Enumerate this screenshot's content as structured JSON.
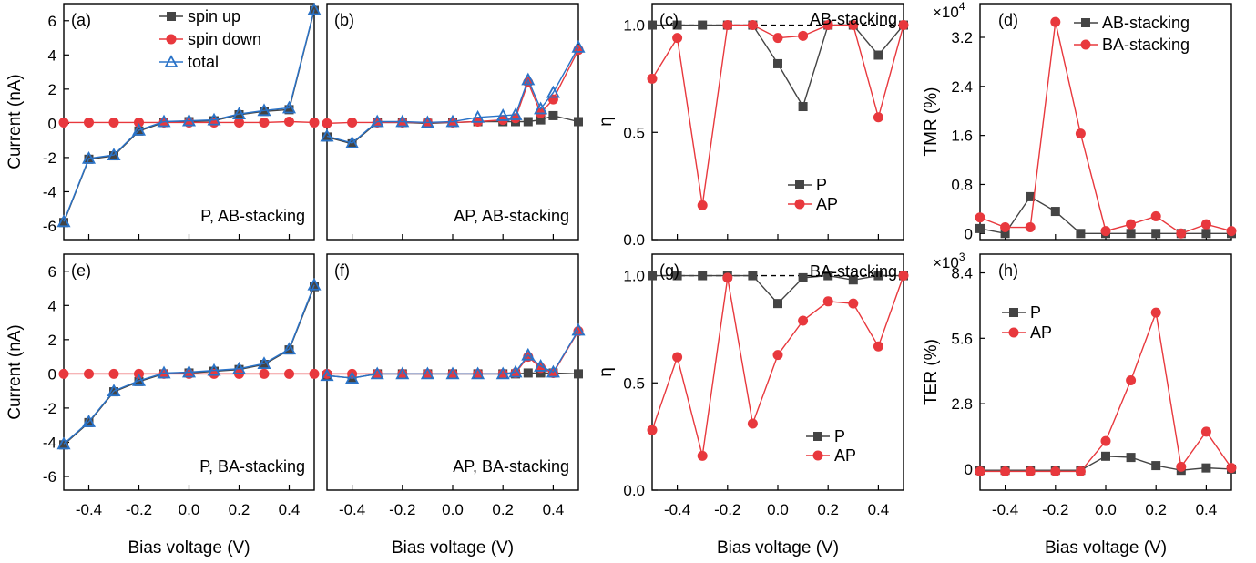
{
  "colors": {
    "spin_up": "#444444",
    "spin_down": "#e8383d",
    "total": "#2a73c8",
    "P": "#444444",
    "AP": "#e8383d"
  },
  "chart_data": [
    {
      "panel": "(a)",
      "type": "line",
      "annotation": "P,  AB-stacking",
      "xlabel": "Bias voltage (V)",
      "ylabel": "Current (nA)",
      "xlim": [
        -0.5,
        0.5
      ],
      "ylim": [
        -6.8,
        7.0
      ],
      "xticks": [
        -0.4,
        -0.2,
        0.0,
        0.2,
        0.4
      ],
      "yticks": [
        -6,
        -4,
        -2,
        0,
        2,
        4,
        6
      ],
      "legend": "top-left",
      "series": [
        {
          "name": "spin up",
          "marker": "square",
          "x": [
            -0.5,
            -0.4,
            -0.3,
            -0.2,
            -0.1,
            0.0,
            0.1,
            0.2,
            0.3,
            0.4,
            0.5
          ],
          "y": [
            -5.8,
            -2.1,
            -1.9,
            -0.45,
            0.05,
            0.1,
            0.15,
            0.5,
            0.7,
            0.8,
            6.6
          ]
        },
        {
          "name": "spin down",
          "marker": "circle",
          "x": [
            -0.5,
            -0.4,
            -0.3,
            -0.2,
            -0.1,
            0.0,
            0.1,
            0.2,
            0.3,
            0.4,
            0.5
          ],
          "y": [
            0.05,
            0.05,
            0.05,
            0.05,
            0.05,
            0.05,
            0.05,
            0.05,
            0.05,
            0.1,
            0.05
          ]
        },
        {
          "name": "total",
          "marker": "triangle",
          "x": [
            -0.5,
            -0.4,
            -0.3,
            -0.2,
            -0.1,
            0.0,
            0.1,
            0.2,
            0.3,
            0.4,
            0.5
          ],
          "y": [
            -5.75,
            -2.05,
            -1.85,
            -0.4,
            0.1,
            0.15,
            0.2,
            0.55,
            0.75,
            0.9,
            6.65
          ]
        }
      ]
    },
    {
      "panel": "(b)",
      "type": "line",
      "annotation": "AP,  AB-stacking",
      "xlabel": "Bias voltage (V)",
      "xlim": [
        -0.5,
        0.5
      ],
      "ylim": [
        -6.8,
        7.0
      ],
      "xticks": [
        -0.4,
        -0.2,
        0.0,
        0.2,
        0.4
      ],
      "yticks": [],
      "series": [
        {
          "name": "spin up",
          "marker": "square",
          "x": [
            -0.5,
            -0.4,
            -0.3,
            -0.2,
            -0.1,
            0.0,
            0.1,
            0.2,
            0.25,
            0.3,
            0.35,
            0.4,
            0.5
          ],
          "y": [
            -0.8,
            -1.2,
            0.05,
            0.05,
            0.0,
            0.05,
            0.1,
            0.1,
            0.1,
            0.1,
            0.2,
            0.45,
            0.1
          ]
        },
        {
          "name": "spin down",
          "marker": "circle",
          "x": [
            -0.5,
            -0.4,
            -0.3,
            -0.2,
            -0.1,
            0.0,
            0.1,
            0.2,
            0.25,
            0.3,
            0.35,
            0.4,
            0.5
          ],
          "y": [
            0.0,
            0.05,
            0.05,
            0.05,
            0.05,
            0.05,
            0.1,
            0.2,
            0.3,
            2.4,
            0.6,
            1.4,
            4.3
          ]
        },
        {
          "name": "total",
          "marker": "triangle",
          "x": [
            -0.5,
            -0.4,
            -0.3,
            -0.2,
            -0.1,
            0.0,
            0.1,
            0.2,
            0.25,
            0.3,
            0.35,
            0.4,
            0.5
          ],
          "y": [
            -0.75,
            -1.15,
            0.1,
            0.1,
            0.05,
            0.1,
            0.35,
            0.45,
            0.5,
            2.55,
            0.85,
            1.8,
            4.45
          ]
        }
      ]
    },
    {
      "panel": "(c)",
      "type": "line",
      "annotation": "AB-stacking",
      "xlabel": "Bias voltage (V)",
      "ylabel": "η",
      "xlim": [
        -0.5,
        0.5
      ],
      "ylim": [
        0.0,
        1.1
      ],
      "xticks": [
        -0.4,
        -0.2,
        0.0,
        0.2,
        0.4
      ],
      "yticks": [
        0.0,
        0.5,
        1.0
      ],
      "ytick_labels": [
        "0.0",
        "0.5",
        "1.0"
      ],
      "reference_line": 1.0,
      "legend": "bottom-right",
      "series": [
        {
          "name": "P",
          "marker": "square",
          "x": [
            -0.5,
            -0.4,
            -0.3,
            -0.2,
            -0.1,
            0.0,
            0.1,
            0.2,
            0.3,
            0.4,
            0.5
          ],
          "y": [
            1.0,
            1.0,
            1.0,
            1.0,
            1.0,
            0.82,
            0.62,
            1.0,
            1.0,
            0.86,
            1.0
          ]
        },
        {
          "name": "AP",
          "marker": "circle",
          "x": [
            -0.5,
            -0.4,
            -0.3,
            -0.2,
            -0.1,
            0.0,
            0.1,
            0.2,
            0.3,
            0.4,
            0.5
          ],
          "y": [
            0.75,
            0.94,
            0.16,
            1.0,
            1.0,
            0.94,
            0.95,
            1.0,
            1.0,
            0.57,
            1.0
          ]
        }
      ]
    },
    {
      "panel": "(d)",
      "type": "line",
      "xlabel": "",
      "ylabel": "TMR (%)",
      "scale_label": "×10",
      "scale_exp": "4",
      "xlim": [
        -0.5,
        0.5
      ],
      "ylim": [
        -0.1,
        3.75
      ],
      "xticks": [
        -0.4,
        -0.2,
        0.0,
        0.2,
        0.4
      ],
      "yticks": [
        0,
        0.8,
        1.6,
        2.4,
        3.2
      ],
      "ytick_labels": [
        "0",
        "0.8",
        "1.6",
        "2.4",
        "3.2"
      ],
      "legend": "top-right",
      "series": [
        {
          "name": "AB-stacking",
          "marker": "square",
          "x": [
            -0.5,
            -0.4,
            -0.3,
            -0.2,
            -0.1,
            0.0,
            0.1,
            0.2,
            0.3,
            0.4,
            0.5
          ],
          "y": [
            0.08,
            0.0,
            0.6,
            0.36,
            0.0,
            0.0,
            0.0,
            0.0,
            0.0,
            0.0,
            0.0
          ]
        },
        {
          "name": "BA-stacking",
          "marker": "circle",
          "x": [
            -0.5,
            -0.4,
            -0.3,
            -0.2,
            -0.1,
            0.0,
            0.1,
            0.2,
            0.3,
            0.4,
            0.5
          ],
          "y": [
            0.26,
            0.1,
            0.1,
            3.45,
            1.63,
            0.04,
            0.15,
            0.28,
            0.0,
            0.15,
            0.04
          ]
        }
      ]
    },
    {
      "panel": "(e)",
      "type": "line",
      "annotation": "P,  BA-stacking",
      "xlabel": "Bias voltage (V)",
      "ylabel": "Current (nA)",
      "xlim": [
        -0.5,
        0.5
      ],
      "ylim": [
        -6.8,
        7.0
      ],
      "xticks": [
        -0.4,
        -0.2,
        0.0,
        0.2,
        0.4
      ],
      "yticks": [
        -6,
        -4,
        -2,
        0,
        2,
        4,
        6
      ],
      "series": [
        {
          "name": "spin up",
          "marker": "square",
          "x": [
            -0.5,
            -0.4,
            -0.3,
            -0.2,
            -0.1,
            0.0,
            0.1,
            0.2,
            0.3,
            0.4,
            0.5
          ],
          "y": [
            -4.15,
            -2.85,
            -1.05,
            -0.45,
            0.0,
            0.05,
            0.15,
            0.25,
            0.55,
            1.4,
            5.1
          ]
        },
        {
          "name": "spin down",
          "marker": "circle",
          "x": [
            -0.5,
            -0.4,
            -0.3,
            -0.2,
            -0.1,
            0.0,
            0.1,
            0.2,
            0.3,
            0.4,
            0.5
          ],
          "y": [
            0.0,
            0.0,
            0.0,
            0.0,
            0.0,
            0.0,
            0.0,
            0.0,
            0.0,
            0.0,
            0.0
          ]
        },
        {
          "name": "total",
          "marker": "triangle",
          "x": [
            -0.5,
            -0.4,
            -0.3,
            -0.2,
            -0.1,
            0.0,
            0.1,
            0.2,
            0.3,
            0.4,
            0.5
          ],
          "y": [
            -4.1,
            -2.8,
            -1.0,
            -0.4,
            0.05,
            0.1,
            0.2,
            0.3,
            0.6,
            1.45,
            5.2
          ]
        }
      ]
    },
    {
      "panel": "(f)",
      "type": "line",
      "annotation": "AP,  BA-stacking",
      "xlabel": "Bias voltage (V)",
      "xlim": [
        -0.5,
        0.5
      ],
      "ylim": [
        -6.8,
        7.0
      ],
      "xticks": [
        -0.4,
        -0.2,
        0.0,
        0.2,
        0.4
      ],
      "yticks": [],
      "series": [
        {
          "name": "spin up",
          "marker": "square",
          "x": [
            -0.5,
            -0.4,
            -0.3,
            -0.2,
            -0.1,
            0.0,
            0.1,
            0.2,
            0.25,
            0.3,
            0.35,
            0.4,
            0.5
          ],
          "y": [
            -0.1,
            -0.25,
            0.0,
            0.0,
            0.0,
            0.0,
            0.0,
            0.0,
            0.0,
            0.05,
            0.05,
            0.05,
            0.0
          ]
        },
        {
          "name": "spin down",
          "marker": "circle",
          "x": [
            -0.5,
            -0.4,
            -0.3,
            -0.2,
            -0.1,
            0.0,
            0.1,
            0.2,
            0.25,
            0.3,
            0.35,
            0.4,
            0.5
          ],
          "y": [
            0.0,
            0.0,
            0.0,
            0.0,
            0.0,
            0.0,
            0.0,
            0.0,
            0.05,
            1.0,
            0.35,
            0.05,
            2.5
          ]
        },
        {
          "name": "total",
          "marker": "triangle",
          "x": [
            -0.5,
            -0.4,
            -0.3,
            -0.2,
            -0.1,
            0.0,
            0.1,
            0.2,
            0.25,
            0.3,
            0.35,
            0.4,
            0.5
          ],
          "y": [
            -0.1,
            -0.25,
            0.0,
            0.0,
            0.0,
            0.0,
            0.0,
            0.0,
            0.1,
            1.1,
            0.45,
            0.1,
            2.55
          ]
        }
      ]
    },
    {
      "panel": "(g)",
      "type": "line",
      "annotation": "BA-stacking",
      "xlabel": "Bias voltage (V)",
      "ylabel": "η",
      "xlim": [
        -0.5,
        0.5
      ],
      "ylim": [
        0.0,
        1.1
      ],
      "xticks": [
        -0.4,
        -0.2,
        0.0,
        0.2,
        0.4
      ],
      "yticks": [
        0.0,
        0.5,
        1.0
      ],
      "ytick_labels": [
        "0.0",
        "0.5",
        "1.0"
      ],
      "reference_line": 1.0,
      "legend": "bottom-right",
      "series": [
        {
          "name": "P",
          "marker": "square",
          "x": [
            -0.5,
            -0.4,
            -0.3,
            -0.2,
            -0.1,
            0.0,
            0.1,
            0.2,
            0.3,
            0.4,
            0.5
          ],
          "y": [
            1.0,
            1.0,
            1.0,
            1.0,
            1.0,
            0.87,
            0.99,
            1.0,
            0.98,
            1.0,
            1.0
          ]
        },
        {
          "name": "AP",
          "marker": "circle",
          "x": [
            -0.5,
            -0.4,
            -0.3,
            -0.2,
            -0.1,
            0.0,
            0.1,
            0.2,
            0.3,
            0.4,
            0.5
          ],
          "y": [
            0.28,
            0.62,
            0.16,
            0.99,
            0.31,
            0.63,
            0.79,
            0.88,
            0.87,
            0.67,
            1.0
          ]
        }
      ]
    },
    {
      "panel": "(h)",
      "type": "line",
      "xlabel": "Bias voltage (V)",
      "ylabel": "TER (%)",
      "scale_label": "×10",
      "scale_exp": "3",
      "xlim": [
        -0.5,
        0.5
      ],
      "ylim": [
        -0.9,
        9.2
      ],
      "xticks": [
        -0.4,
        -0.2,
        0.0,
        0.2,
        0.4
      ],
      "yticks": [
        0,
        2.8,
        5.6,
        8.4
      ],
      "ytick_labels": [
        "0",
        "2.8",
        "5.6",
        "8.4"
      ],
      "legend": "top-left",
      "series": [
        {
          "name": "P",
          "marker": "square",
          "x": [
            -0.5,
            -0.4,
            -0.3,
            -0.2,
            -0.1,
            0.0,
            0.1,
            0.2,
            0.3,
            0.4,
            0.5
          ],
          "y": [
            -0.05,
            -0.05,
            -0.05,
            -0.05,
            -0.05,
            0.55,
            0.5,
            0.15,
            -0.05,
            0.05,
            0.0
          ]
        },
        {
          "name": "AP",
          "marker": "circle",
          "x": [
            -0.5,
            -0.4,
            -0.3,
            -0.2,
            -0.1,
            0.0,
            0.1,
            0.2,
            0.3,
            0.4,
            0.5
          ],
          "y": [
            -0.1,
            -0.1,
            -0.1,
            -0.1,
            -0.1,
            1.2,
            3.8,
            6.7,
            0.1,
            1.6,
            0.05
          ]
        }
      ]
    }
  ]
}
